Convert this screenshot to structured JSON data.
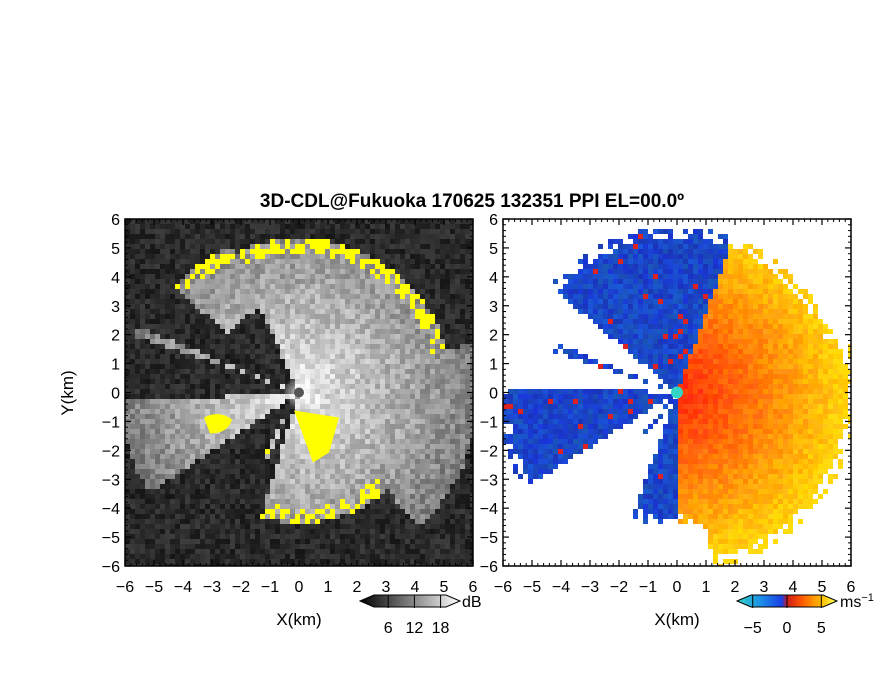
{
  "title": "3D-CDL@Fukuoka 170625 132351 PPI EL=00.0º",
  "chart_data": [
    {
      "type": "heatmap",
      "panel": "reflectivity",
      "xlabel": "X(km)",
      "ylabel": "Y(km)",
      "xlim": [
        -6,
        6
      ],
      "ylim": [
        -6,
        6
      ],
      "xticks": [
        "−6",
        "−5",
        "−4",
        "−3",
        "−2",
        "−1",
        "0",
        "1",
        "2",
        "3",
        "4",
        "5",
        "6"
      ],
      "yticks": [
        "6",
        "5",
        "4",
        "3",
        "2",
        "1",
        "0",
        "−1",
        "−2",
        "−3",
        "−4",
        "−5",
        "−6"
      ],
      "colorbar": {
        "unit": "dB",
        "ticks": [
          "6",
          "12",
          "18"
        ],
        "tick_values": [
          6,
          12,
          18
        ],
        "range": [
          0,
          22
        ]
      },
      "colors": {
        "background": "#262626",
        "echo_low": "#777777",
        "echo_high": "#f0f0f0",
        "saturated": "#ffff00"
      }
    },
    {
      "type": "heatmap",
      "panel": "doppler_velocity",
      "xlabel": "X(km)",
      "xlim": [
        -6,
        6
      ],
      "ylim": [
        -6,
        6
      ],
      "xticks": [
        "−6",
        "−5",
        "−4",
        "−3",
        "−2",
        "−1",
        "0",
        "1",
        "2",
        "3",
        "4",
        "5",
        "6"
      ],
      "yticks": [
        "6",
        "5",
        "4",
        "3",
        "2",
        "1",
        "0",
        "−1",
        "−2",
        "−3",
        "−4",
        "−5",
        "−6"
      ],
      "colorbar": {
        "unit": "ms",
        "unit_exponent": "−1",
        "ticks": [
          "−5",
          "0",
          "5"
        ],
        "tick_values": [
          -5,
          0,
          5
        ],
        "range": [
          -7,
          7
        ]
      },
      "colors": {
        "toward": "#1a5ce6",
        "away": "#ff4a00",
        "far_away": "#ffd000",
        "center": "#33d6c6"
      }
    }
  ]
}
